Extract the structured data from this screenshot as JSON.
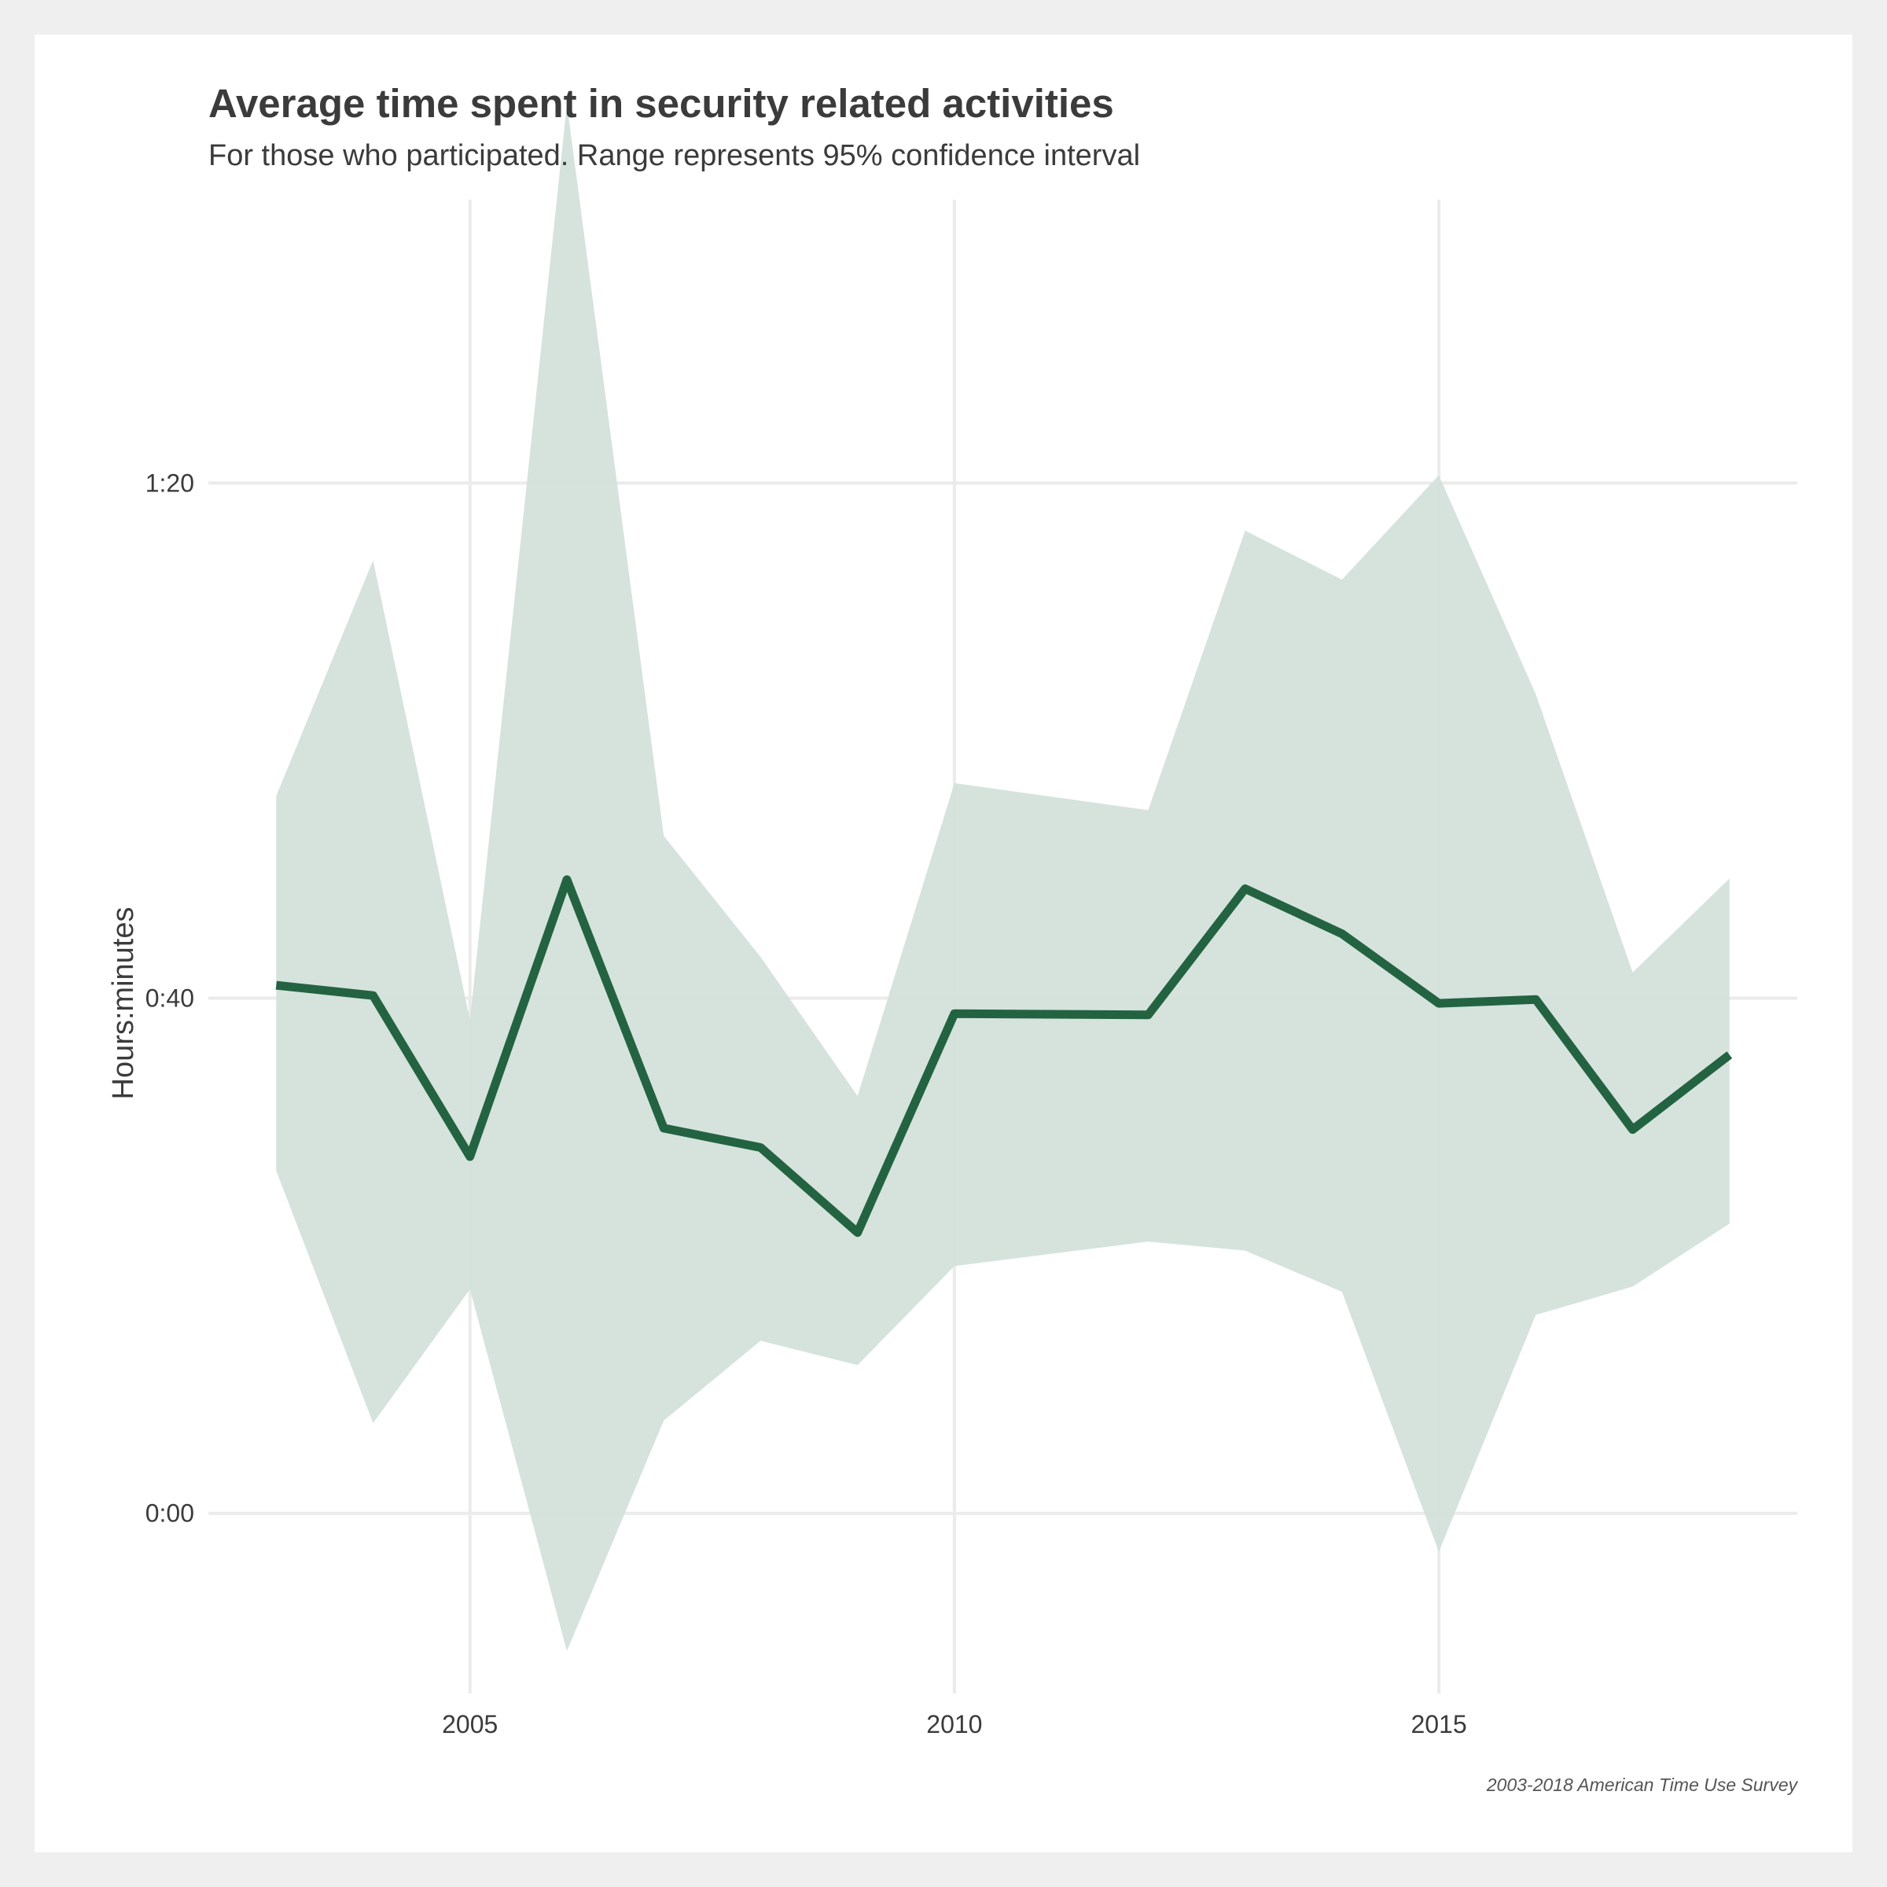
{
  "chart_data": {
    "type": "line",
    "title": "Average time spent in security related activities",
    "subtitle": "For those who participated. Range represents 95% confidence interval",
    "xlabel": "",
    "ylabel": "Hours:minutes",
    "caption": "2003-2018 American Time Use Survey",
    "x_ticks": [
      2005,
      2010,
      2015
    ],
    "x_tick_labels": [
      "2005",
      "2010",
      "2015"
    ],
    "y_ticks": [
      0,
      40,
      80
    ],
    "y_tick_labels": [
      "0:00",
      "0:40",
      "1:20"
    ],
    "xlim": [
      2002.3,
      2018.7
    ],
    "ylim": [
      -14,
      102
    ],
    "grid": true,
    "colors": {
      "line": "#236342",
      "band": "#d3e1da",
      "grid": "#ebebeb"
    },
    "x": [
      2003,
      2004,
      2005,
      2006,
      2007,
      2008,
      2009,
      2010,
      2012,
      2013,
      2014,
      2015,
      2016,
      2017,
      2018
    ],
    "series": [
      {
        "values": [
          41.0,
          40.2,
          27.7,
          49.2,
          29.9,
          28.4,
          21.8,
          38.8,
          38.7,
          48.5,
          45.0,
          39.6,
          39.9,
          29.8,
          35.6
        ],
        "lower": [
          26.6,
          7.0,
          17.4,
          -10.7,
          7.2,
          13.4,
          11.5,
          19.2,
          21.1,
          20.4,
          17.2,
          -3.0,
          15.4,
          17.6,
          22.5
        ],
        "upper": [
          55.7,
          74.0,
          38.3,
          109.4,
          52.6,
          43.2,
          32.4,
          56.7,
          54.6,
          76.3,
          72.5,
          80.6,
          63.6,
          42.0,
          49.3
        ]
      }
    ]
  }
}
